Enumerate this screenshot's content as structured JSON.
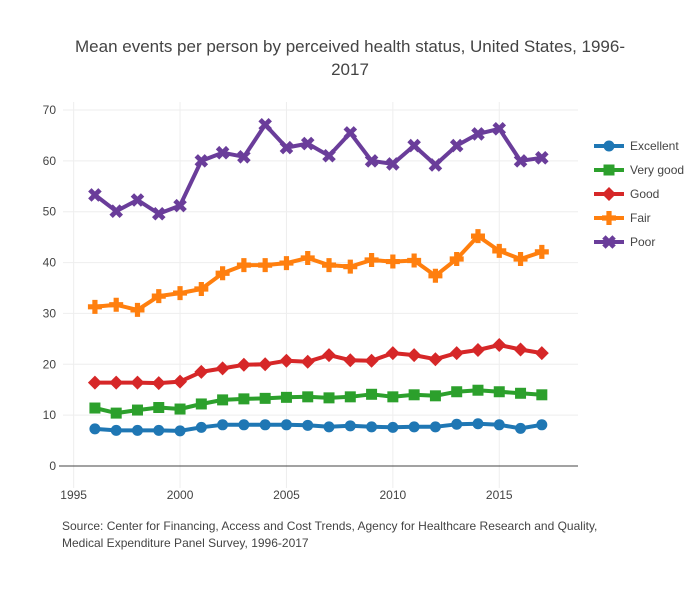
{
  "chart_data": {
    "type": "line",
    "title": "Mean events per person by perceived health status, United States, 1996-2017",
    "title_lines": [
      "Mean events per person by perceived health status, United States, 1996-",
      "2017"
    ],
    "xlabel": "",
    "ylabel": "",
    "xlim": [
      1994.5,
      2018.7
    ],
    "ylim": [
      0,
      70
    ],
    "xticks": [
      1995,
      2000,
      2005,
      2010,
      2015
    ],
    "xtick_labels": [
      "1995",
      "2000",
      "2005",
      "2010",
      "2015"
    ],
    "yticks": [
      0,
      10,
      20,
      30,
      40,
      50,
      60,
      70
    ],
    "ytick_labels": [
      "0",
      "10",
      "20",
      "30",
      "40",
      "50",
      "60",
      "70"
    ],
    "grid": true,
    "legend_position": "right",
    "x": [
      1996,
      1997,
      1998,
      1999,
      2000,
      2001,
      2002,
      2003,
      2004,
      2005,
      2006,
      2007,
      2008,
      2009,
      2010,
      2011,
      2012,
      2013,
      2014,
      2015,
      2016,
      2017
    ],
    "series": [
      {
        "name": "Excellent",
        "color": "#1f77b4",
        "marker": "circle",
        "values": [
          7.3,
          7.0,
          7.0,
          7.0,
          6.9,
          7.6,
          8.1,
          8.1,
          8.1,
          8.1,
          8.0,
          7.7,
          7.9,
          7.7,
          7.6,
          7.7,
          7.7,
          8.2,
          8.3,
          8.1,
          7.4,
          8.1
        ]
      },
      {
        "name": "Very good",
        "color": "#2ca02c",
        "marker": "square",
        "values": [
          11.4,
          10.4,
          11.0,
          11.5,
          11.2,
          12.2,
          13.0,
          13.2,
          13.3,
          13.5,
          13.6,
          13.4,
          13.6,
          14.1,
          13.6,
          14.0,
          13.8,
          14.6,
          14.9,
          14.6,
          14.3,
          14.0
        ]
      },
      {
        "name": "Good",
        "color": "#d62728",
        "marker": "diamond",
        "values": [
          16.4,
          16.4,
          16.4,
          16.3,
          16.6,
          18.5,
          19.2,
          19.9,
          20.0,
          20.7,
          20.5,
          21.8,
          20.8,
          20.7,
          22.2,
          21.8,
          21.0,
          22.2,
          22.8,
          23.8,
          22.9,
          22.2
        ]
      },
      {
        "name": "Fair",
        "color": "#ff7f0e",
        "marker": "cross",
        "values": [
          31.3,
          31.7,
          30.7,
          33.4,
          34.0,
          34.8,
          37.9,
          39.5,
          39.5,
          39.9,
          40.9,
          39.5,
          39.2,
          40.5,
          40.2,
          40.4,
          37.4,
          40.7,
          45.2,
          42.3,
          40.7,
          42.1
        ]
      },
      {
        "name": "Poor",
        "color": "#6a3d9a",
        "marker": "x",
        "values": [
          53.3,
          50.1,
          52.3,
          49.6,
          51.2,
          60.0,
          61.6,
          60.8,
          67.1,
          62.6,
          63.4,
          61.0,
          65.5,
          60.0,
          59.4,
          63.0,
          59.2,
          63.0,
          65.3,
          66.3,
          60.0,
          60.6
        ]
      }
    ],
    "source_lines": [
      "Source: Center for Financing, Access and Cost Trends, Agency for Healthcare Research and Quality,",
      "Medical Expenditure Panel Survey, 1996-2017"
    ]
  }
}
